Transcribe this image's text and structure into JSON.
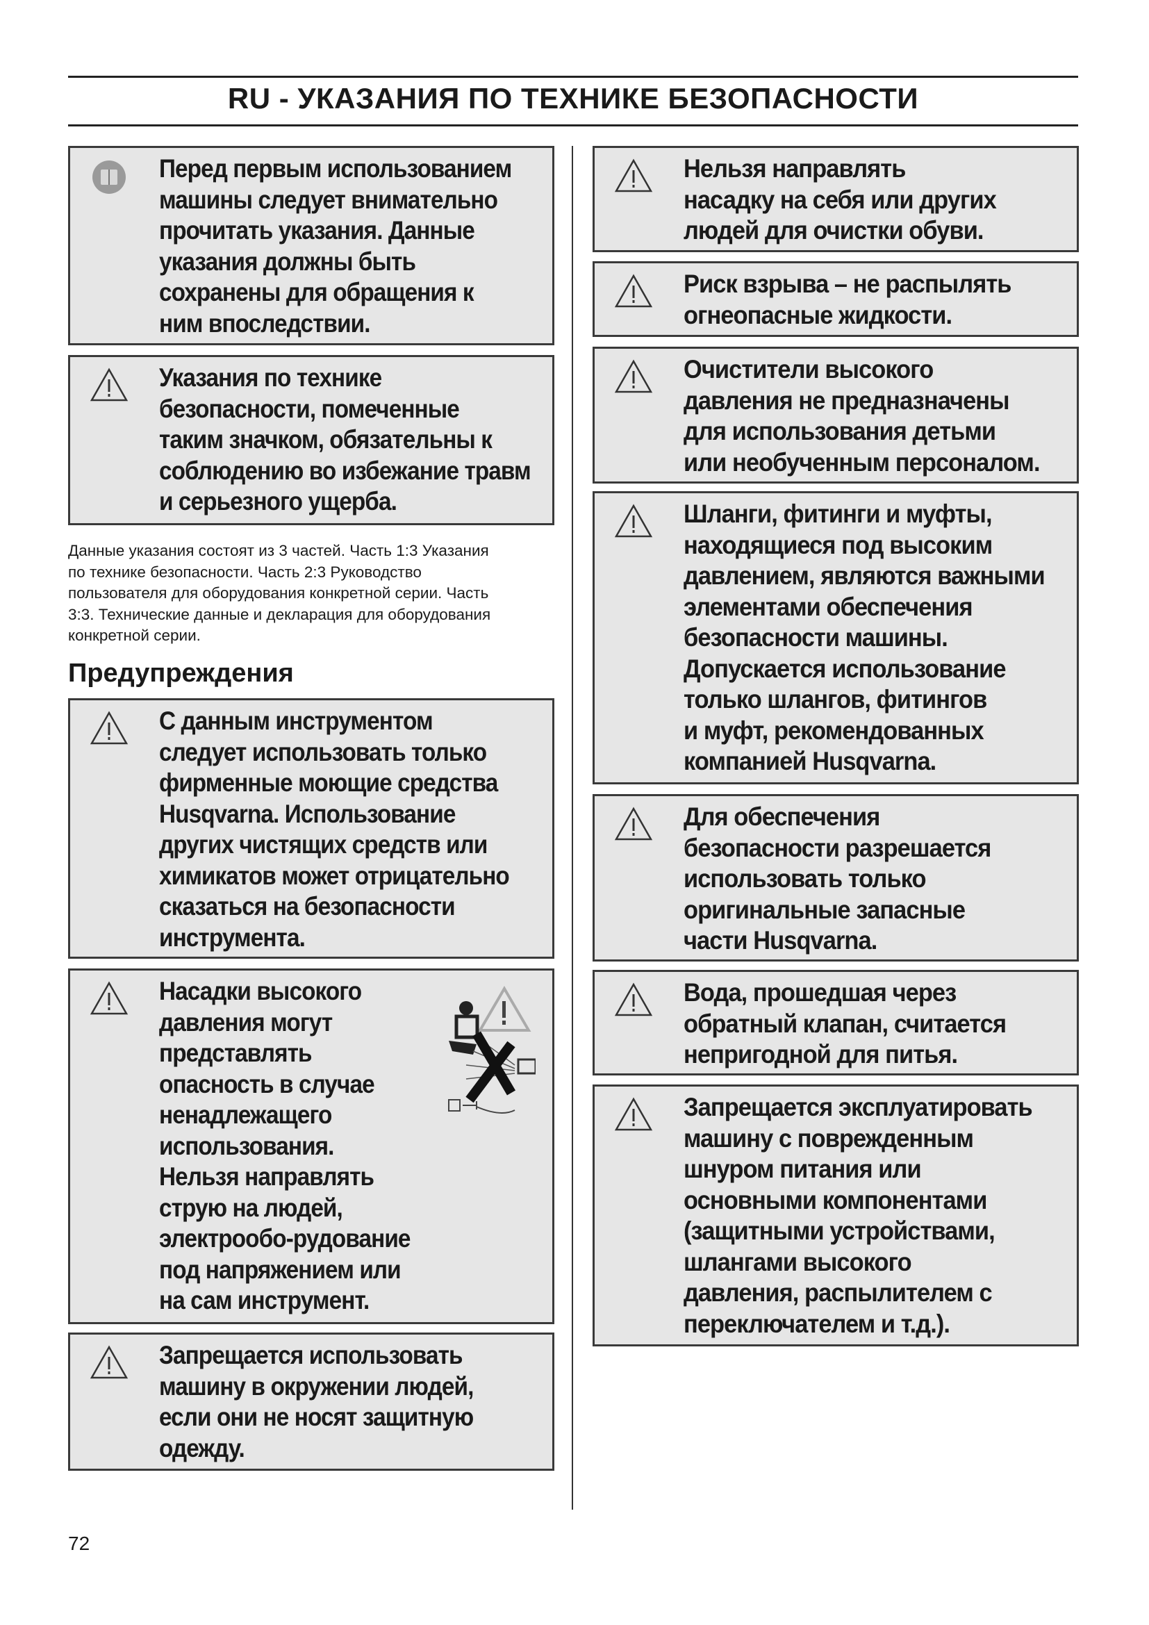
{
  "header": {
    "title": "RU - УКАЗАНИЯ ПО ТЕХНИКЕ БЕЗОПАСНОСТИ"
  },
  "left": {
    "intro_box": "Перед первым использованием\nмашины следует внимательно\nпрочитать указания. Данные\nуказания должны быть\nсохранены для обращения к\nним впоследствии.",
    "symbol_box": "Указания по технике\nбезопасности, помеченные\nтаким значком, обязательны к\nсоблюдению во избежание травм\nи серьезного ущерба.",
    "paragraph": "Данные указания состоят из 3 частей. Часть 1:3 Указания\nпо технике безопасности. Часть 2:3 Руководство\nпользователя для оборудования конкретной серии. Часть\n3:3. Технические данные и декларация для оборудования\nконкретной серии.",
    "heading": "Предупреждения",
    "warnings": [
      "С данным инструментом\nследует использовать только\nфирменные моющие средства\nHusqvarna. Использование\nдругих чистящих средств или\nхимикатов может отрицательно\nсказаться на безопасности\nинструмента.",
      "Насадки высокого\nдавления могут\nпредставлять\nопасность в случае\nненадлежащего\nиспользования.\nНельзя направлять\nструю на людей,\nэлектрообо-рудование\nпод напряжением или\nна сам инструмент.",
      "Запрещается использовать\nмашину в окружении людей,\nесли они не носят защитную\nодежду."
    ]
  },
  "right": {
    "warnings": [
      "Нельзя направлять\nнасадку на себя или других\nлюдей для очистки обуви.",
      "Риск взрыва – не распылять\nогнеопасные жидкости.",
      "Очистители высокого\nдавления не предназначены\nдля использования детьми\nили необученным персоналом.",
      "Шланги, фитинги и муфты,\nнаходящиеся под высоким\nдавлением, являются важными\nэлементами обеспечения\nбезопасности машины.\nДопускается использование\nтолько шлангов, фитингов\nи муфт, рекомендованных\nкомпанией Husqvarna.",
      "Для обеспечения\nбезопасности разрешается\nиспользовать только\nоригинальные запасные\nчасти Husqvarna.",
      "Вода, прошедшая через\nобратный клапан, считается\nнепригодной для питья.",
      "Запрещается эксплуатировать\nмашину с поврежденным\nшнуром питания или\nосновными компонентами\n(защитными устройствами,\nшлангами высокого\nдавления, распылителем с\nпереключателем и т.д.)."
    ]
  },
  "icons": {
    "warning": "warning-triangle-icon",
    "manual": "read-manual-icon",
    "pictogram": "do-not-spray-people-pictogram"
  },
  "footer": {
    "page_number": "72"
  }
}
